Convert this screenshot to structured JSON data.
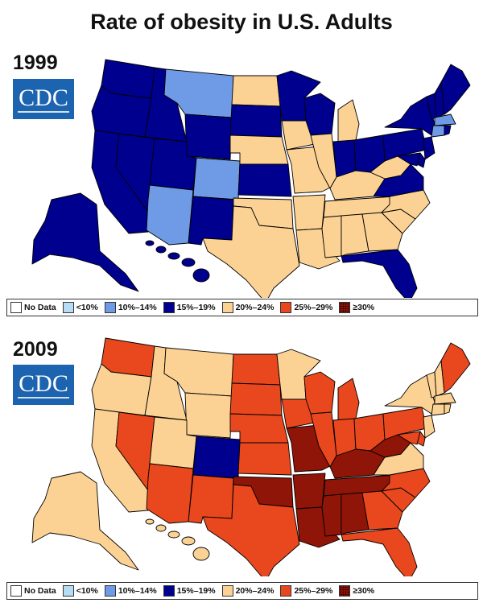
{
  "title": "Rate of obesity in U.S. Adults",
  "logo_text": "CDC",
  "colors": {
    "no_data": "#ffffff",
    "lt10": "#b7dcf5",
    "c10_14": "#6f9be6",
    "c15_19": "#00008f",
    "c20_24": "#fcd294",
    "c25_29": "#e9471d",
    "c30": "#8e1508",
    "border": "#000000"
  },
  "legend": [
    {
      "key": "no_data",
      "label": "No Data"
    },
    {
      "key": "lt10",
      "label": "<10%"
    },
    {
      "key": "c10_14",
      "label": "10%–14%"
    },
    {
      "key": "c15_19",
      "label": "15%–19%"
    },
    {
      "key": "c20_24",
      "label": "20%–24%"
    },
    {
      "key": "c25_29",
      "label": "25%–29%"
    },
    {
      "key": "c30",
      "label": "≥30%"
    }
  ],
  "maps": [
    {
      "year": "1999",
      "states": {
        "WA": "c15_19",
        "OR": "c15_19",
        "CA": "c15_19",
        "NV": "c15_19",
        "ID": "c15_19",
        "MT": "c10_14",
        "WY": "c15_19",
        "UT": "c15_19",
        "AZ": "c10_14",
        "CO": "c10_14",
        "NM": "c15_19",
        "ND": "c20_24",
        "SD": "c15_19",
        "NE": "c20_24",
        "KS": "c15_19",
        "OK": "c20_24",
        "TX": "c20_24",
        "MN": "c15_19",
        "IA": "c20_24",
        "MO": "c20_24",
        "AR": "c20_24",
        "LA": "c20_24",
        "WI": "c15_19",
        "IL": "c20_24",
        "MI": "c20_24",
        "IN": "c15_19",
        "OH": "c15_19",
        "KY": "c20_24",
        "TN": "c20_24",
        "MS": "c20_24",
        "AL": "c20_24",
        "GA": "c20_24",
        "FL": "c15_19",
        "SC": "c20_24",
        "NC": "c20_24",
        "VA": "c15_19",
        "WV": "c20_24",
        "PA": "c15_19",
        "NY": "c15_19",
        "VT": "c15_19",
        "NH": "c15_19",
        "ME": "c15_19",
        "MA": "c10_14",
        "CT": "c10_14",
        "RI": "c15_19",
        "NJ": "c15_19",
        "DE": "c15_19",
        "MD": "c15_19",
        "AK": "c15_19",
        "HI": "c15_19"
      }
    },
    {
      "year": "2009",
      "states": {
        "WA": "c25_29",
        "OR": "c20_24",
        "CA": "c20_24",
        "NV": "c25_29",
        "ID": "c20_24",
        "MT": "c20_24",
        "WY": "c20_24",
        "UT": "c20_24",
        "AZ": "c25_29",
        "CO": "c15_19",
        "NM": "c25_29",
        "ND": "c25_29",
        "SD": "c25_29",
        "NE": "c25_29",
        "KS": "c25_29",
        "OK": "c30",
        "TX": "c25_29",
        "MN": "c20_24",
        "IA": "c25_29",
        "MO": "c30",
        "AR": "c30",
        "LA": "c30",
        "WI": "c25_29",
        "IL": "c25_29",
        "MI": "c25_29",
        "IN": "c25_29",
        "OH": "c25_29",
        "KY": "c30",
        "TN": "c30",
        "MS": "c30",
        "AL": "c30",
        "GA": "c25_29",
        "FL": "c25_29",
        "SC": "c25_29",
        "NC": "c25_29",
        "VA": "c20_24",
        "WV": "c30",
        "PA": "c25_29",
        "NY": "c20_24",
        "VT": "c20_24",
        "NH": "c20_24",
        "ME": "c25_29",
        "MA": "c20_24",
        "CT": "c20_24",
        "RI": "c20_24",
        "NJ": "c20_24",
        "DE": "c25_29",
        "MD": "c25_29",
        "AK": "c20_24",
        "HI": "c20_24"
      }
    }
  ]
}
